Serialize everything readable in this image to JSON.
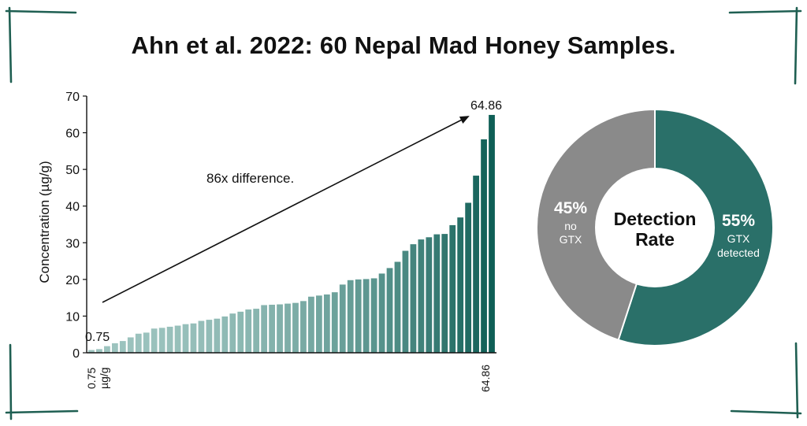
{
  "title": "Ahn et al. 2022: 60 Nepal Mad Honey Samples.",
  "colors": {
    "frame": "#1f5f52",
    "bar_light": "#9cc3be",
    "bar_dark": "#0f5f56",
    "axis": "#111111",
    "donut_detected": "#2a7069",
    "donut_none": "#8a8a8a"
  },
  "chart_data": [
    {
      "type": "bar",
      "ylabel": "Concentration (µg/g)",
      "ylim": [
        0,
        70
      ],
      "yticks": [
        0,
        10,
        20,
        30,
        40,
        50,
        60,
        70
      ],
      "xtick_first": "0.75\nµg/g",
      "xtick_last": "64.86",
      "values": [
        0.75,
        1.0,
        1.8,
        2.6,
        3.2,
        4.2,
        5.2,
        5.5,
        6.6,
        6.8,
        7.1,
        7.4,
        7.8,
        8.0,
        8.7,
        9.0,
        9.3,
        9.9,
        10.7,
        11.2,
        11.8,
        12.0,
        13.0,
        13.1,
        13.2,
        13.4,
        13.6,
        14.1,
        15.3,
        15.6,
        15.9,
        16.5,
        18.6,
        19.8,
        20.0,
        20.1,
        20.3,
        21.6,
        23.1,
        24.8,
        27.8,
        29.6,
        30.9,
        31.5,
        32.3,
        32.4,
        34.8,
        36.9,
        40.9,
        48.3,
        58.2,
        64.86
      ],
      "annotations": {
        "min_label": "0.75",
        "max_label": "64.86",
        "arrow_label": "86x difference."
      }
    },
    {
      "type": "pie",
      "center_label_line1": "Detection",
      "center_label_line2": "Rate",
      "slices": [
        {
          "label_pct": "55%",
          "label_text_1": "GTX",
          "label_text_2": "detected",
          "value": 55
        },
        {
          "label_pct": "45%",
          "label_text_1": "no",
          "label_text_2": "GTX",
          "value": 45
        }
      ]
    }
  ]
}
